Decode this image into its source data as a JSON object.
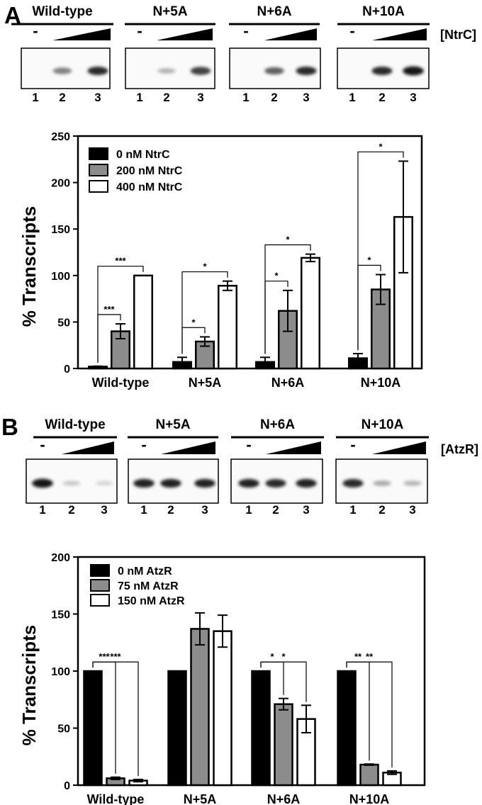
{
  "panels": [
    {
      "letter": "A",
      "gel": {
        "protein_label": "[NtrC]",
        "minus": "-",
        "groups": [
          {
            "name": "Wild-type",
            "lanes": [
              "1",
              "2",
              "3"
            ],
            "band_intensity": [
              0.0,
              0.45,
              0.85
            ]
          },
          {
            "name": "N+5A",
            "lanes": [
              "1",
              "2",
              "3"
            ],
            "band_intensity": [
              0.0,
              0.22,
              0.75
            ]
          },
          {
            "name": "N+6A",
            "lanes": [
              "1",
              "2",
              "3"
            ],
            "band_intensity": [
              0.0,
              0.6,
              0.85
            ]
          },
          {
            "name": "N+10A",
            "lanes": [
              "1",
              "2",
              "3"
            ],
            "band_intensity": [
              0.0,
              0.85,
              0.95
            ]
          }
        ]
      },
      "chart_data": {
        "type": "bar",
        "ylabel": "% Transcripts",
        "xlabel": "",
        "ylim": [
          0,
          250
        ],
        "yticks": [
          "0",
          "50",
          "100",
          "150",
          "200",
          "250"
        ],
        "categories": [
          "Wild-type",
          "N+5A",
          "N+6A",
          "N+10A"
        ],
        "series": [
          {
            "name": "0 nM NtrC",
            "color": "#000000",
            "values": [
              2,
              7,
              7,
              11
            ],
            "errors": [
              0.5,
              5,
              5,
              5
            ]
          },
          {
            "name": "200 nM NtrC",
            "color": "#8c8c8c",
            "values": [
              40,
              29,
              62,
              85
            ],
            "errors": [
              8,
              5,
              22,
              16
            ]
          },
          {
            "name": "400 nM NtrC",
            "color": "#ffffff",
            "values": [
              100,
              89,
              119,
              163
            ],
            "errors": [
              0,
              5,
              4,
              60
            ]
          }
        ],
        "significance": [
          {
            "category": 0,
            "from": 0,
            "to": 1,
            "label": "***"
          },
          {
            "category": 0,
            "from": 0,
            "to": 2,
            "label": "***"
          },
          {
            "category": 1,
            "from": 0,
            "to": 1,
            "label": "*"
          },
          {
            "category": 1,
            "from": 0,
            "to": 2,
            "label": "*"
          },
          {
            "category": 2,
            "from": 0,
            "to": 1,
            "label": "*"
          },
          {
            "category": 2,
            "from": 0,
            "to": 2,
            "label": "*"
          },
          {
            "category": 3,
            "from": 0,
            "to": 1,
            "label": "*"
          },
          {
            "category": 3,
            "from": 0,
            "to": 2,
            "label": "*"
          }
        ],
        "legend_position": "top-left"
      }
    },
    {
      "letter": "B",
      "gel": {
        "protein_label": "[AtzR]",
        "minus": "-",
        "groups": [
          {
            "name": "Wild-type",
            "lanes": [
              "1",
              "2",
              "3"
            ],
            "band_intensity": [
              0.95,
              0.12,
              0.06
            ]
          },
          {
            "name": "N+5A",
            "lanes": [
              "1",
              "2",
              "3"
            ],
            "band_intensity": [
              0.9,
              0.9,
              0.9
            ]
          },
          {
            "name": "N+6A",
            "lanes": [
              "1",
              "2",
              "3"
            ],
            "band_intensity": [
              0.9,
              0.85,
              0.88
            ]
          },
          {
            "name": "N+10A",
            "lanes": [
              "1",
              "2",
              "3"
            ],
            "band_intensity": [
              0.85,
              0.25,
              0.2
            ]
          }
        ]
      },
      "chart_data": {
        "type": "bar",
        "ylabel": "% Transcripts",
        "xlabel": "",
        "ylim": [
          0,
          200
        ],
        "yticks": [
          "0",
          "50",
          "100",
          "150",
          "200"
        ],
        "categories": [
          "Wild-type",
          "N+5A",
          "N+6A",
          "N+10A"
        ],
        "series": [
          {
            "name": "0 nM AtzR",
            "color": "#000000",
            "values": [
              100,
              100,
              100,
              100
            ],
            "errors": [
              0,
              0,
              0,
              0
            ]
          },
          {
            "name": "75 nM AtzR",
            "color": "#8c8c8c",
            "values": [
              6,
              137,
              71,
              18
            ],
            "errors": [
              1,
              14,
              5,
              0.5
            ]
          },
          {
            "name": "150 nM AtzR",
            "color": "#ffffff",
            "values": [
              4,
              135,
              58,
              11
            ],
            "errors": [
              1,
              14,
              12,
              1.5
            ]
          }
        ],
        "significance": [
          {
            "category": 0,
            "from": 0,
            "to": 1,
            "label": "***"
          },
          {
            "category": 0,
            "from": 0,
            "to": 2,
            "label": "***"
          },
          {
            "category": 2,
            "from": 0,
            "to": 1,
            "label": "*"
          },
          {
            "category": 2,
            "from": 0,
            "to": 2,
            "label": "*"
          },
          {
            "category": 3,
            "from": 0,
            "to": 1,
            "label": "**"
          },
          {
            "category": 3,
            "from": 0,
            "to": 2,
            "label": "**"
          }
        ],
        "legend_position": "top-left"
      }
    }
  ]
}
